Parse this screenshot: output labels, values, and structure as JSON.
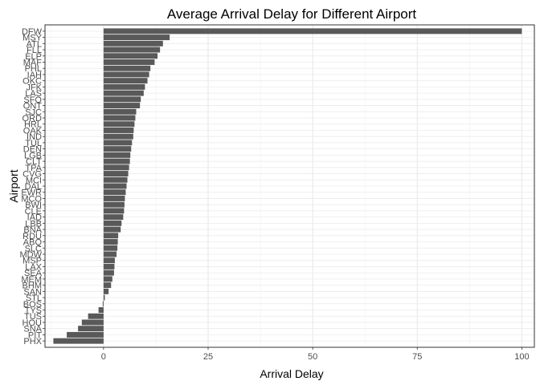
{
  "chart_data": {
    "type": "bar",
    "orientation": "horizontal",
    "title": "Average Arrival Delay for Different Airport",
    "xlabel": "Arrival Delay",
    "ylabel": "Airport",
    "xlim": [
      -14,
      103
    ],
    "xticks": [
      0,
      25,
      50,
      75,
      100
    ],
    "grid": true,
    "bar_color": "#595959",
    "categories": [
      "DFW",
      "MSY",
      "ATL",
      "FLL",
      "ELP",
      "MAF",
      "PHL",
      "IAH",
      "OKC",
      "JFK",
      "LAS",
      "SFO",
      "ONT",
      "SJC",
      "ORD",
      "HRL",
      "OAK",
      "IND",
      "TUL",
      "DEN",
      "LGB",
      "CLT",
      "TPA",
      "CVG",
      "MCI",
      "DAL",
      "EWR",
      "MCO",
      "BWI",
      "CLE",
      "IAD",
      "LBB",
      "BNA",
      "RDU",
      "ABQ",
      "SLC",
      "MDW",
      "MSP",
      "LAX",
      "SEA",
      "MEM",
      "BHM",
      "SAN",
      "STL",
      "BOS",
      "TYS",
      "TUS",
      "HOU",
      "SNA",
      "PIT",
      "PHX"
    ],
    "values": [
      100,
      15.8,
      14.2,
      13.5,
      12.9,
      12.2,
      11.2,
      10.9,
      10.5,
      9.9,
      9.6,
      8.9,
      8.7,
      7.8,
      7.6,
      7.4,
      7.2,
      7.1,
      6.8,
      6.6,
      6.4,
      6.3,
      6.1,
      5.9,
      5.7,
      5.5,
      5.3,
      5.1,
      5.0,
      4.9,
      4.7,
      4.3,
      4.1,
      3.5,
      3.4,
      3.3,
      3.1,
      2.7,
      2.6,
      2.5,
      2.1,
      1.8,
      1.2,
      0.3,
      -0.2,
      -1.2,
      -3.7,
      -5.2,
      -6.1,
      -8.8,
      -12
    ]
  }
}
